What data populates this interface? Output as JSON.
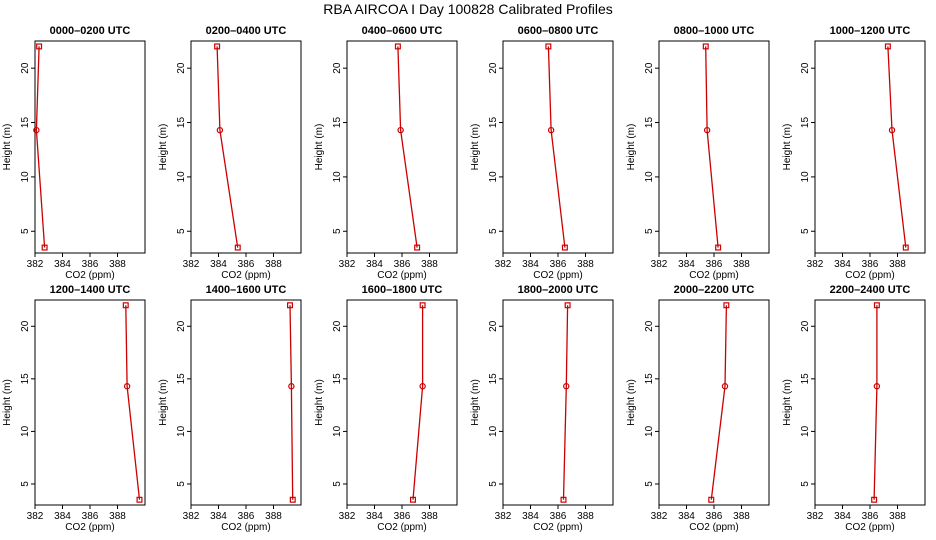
{
  "figure": {
    "title": "RBA AIRCOA I  Day 100828  Calibrated Profiles",
    "series_color": "#cc0000"
  },
  "chart_data": [
    {
      "type": "line",
      "title": "0000–0200 UTC",
      "xlabel": "CO2 (ppm)",
      "ylabel": "Height (m)",
      "xlim": [
        382,
        390
      ],
      "ylim": [
        3,
        22.5
      ],
      "xticks": [
        382,
        384,
        386,
        388
      ],
      "yticks": [
        5,
        10,
        15,
        20
      ],
      "points": [
        {
          "x": 382.3,
          "y": 22
        },
        {
          "x": 382.1,
          "y": 14.3
        },
        {
          "x": 382.7,
          "y": 3.5
        }
      ]
    },
    {
      "type": "line",
      "title": "0200–0400 UTC",
      "xlabel": "CO2 (ppm)",
      "ylabel": "Height (m)",
      "xlim": [
        382,
        390
      ],
      "ylim": [
        3,
        22.5
      ],
      "xticks": [
        382,
        384,
        386,
        388
      ],
      "yticks": [
        5,
        10,
        15,
        20
      ],
      "points": [
        {
          "x": 383.9,
          "y": 22
        },
        {
          "x": 384.1,
          "y": 14.3
        },
        {
          "x": 385.4,
          "y": 3.5
        }
      ]
    },
    {
      "type": "line",
      "title": "0400–0600 UTC",
      "xlabel": "CO2 (ppm)",
      "ylabel": "Height (m)",
      "xlim": [
        382,
        390
      ],
      "ylim": [
        3,
        22.5
      ],
      "xticks": [
        382,
        384,
        386,
        388
      ],
      "yticks": [
        5,
        10,
        15,
        20
      ],
      "points": [
        {
          "x": 385.7,
          "y": 22
        },
        {
          "x": 385.9,
          "y": 14.3
        },
        {
          "x": 387.1,
          "y": 3.5
        }
      ]
    },
    {
      "type": "line",
      "title": "0600–0800 UTC",
      "xlabel": "CO2 (ppm)",
      "ylabel": "Height (m)",
      "xlim": [
        382,
        390
      ],
      "ylim": [
        3,
        22.5
      ],
      "xticks": [
        382,
        384,
        386,
        388
      ],
      "yticks": [
        5,
        10,
        15,
        20
      ],
      "points": [
        {
          "x": 385.3,
          "y": 22
        },
        {
          "x": 385.5,
          "y": 14.3
        },
        {
          "x": 386.5,
          "y": 3.5
        }
      ]
    },
    {
      "type": "line",
      "title": "0800–1000 UTC",
      "xlabel": "CO2 (ppm)",
      "ylabel": "Height (m)",
      "xlim": [
        382,
        390
      ],
      "ylim": [
        3,
        22.5
      ],
      "xticks": [
        382,
        384,
        386,
        388
      ],
      "yticks": [
        5,
        10,
        15,
        20
      ],
      "points": [
        {
          "x": 385.4,
          "y": 22
        },
        {
          "x": 385.5,
          "y": 14.3
        },
        {
          "x": 386.3,
          "y": 3.5
        }
      ]
    },
    {
      "type": "line",
      "title": "1000–1200 UTC",
      "xlabel": "CO2 (ppm)",
      "ylabel": "Height (m)",
      "xlim": [
        382,
        390
      ],
      "ylim": [
        3,
        22.5
      ],
      "xticks": [
        382,
        384,
        386,
        388
      ],
      "yticks": [
        5,
        10,
        15,
        20
      ],
      "points": [
        {
          "x": 387.3,
          "y": 22
        },
        {
          "x": 387.6,
          "y": 14.3
        },
        {
          "x": 388.6,
          "y": 3.5
        }
      ]
    },
    {
      "type": "line",
      "title": "1200–1400 UTC",
      "xlabel": "CO2 (ppm)",
      "ylabel": "Height (m)",
      "xlim": [
        382,
        390
      ],
      "ylim": [
        3,
        22.5
      ],
      "xticks": [
        382,
        384,
        386,
        388
      ],
      "yticks": [
        5,
        10,
        15,
        20
      ],
      "points": [
        {
          "x": 388.6,
          "y": 22
        },
        {
          "x": 388.7,
          "y": 14.3
        },
        {
          "x": 389.6,
          "y": 3.5
        }
      ]
    },
    {
      "type": "line",
      "title": "1400–1600 UTC",
      "xlabel": "CO2 (ppm)",
      "ylabel": "Height (m)",
      "xlim": [
        382,
        390
      ],
      "ylim": [
        3,
        22.5
      ],
      "xticks": [
        382,
        384,
        386,
        388
      ],
      "yticks": [
        5,
        10,
        15,
        20
      ],
      "points": [
        {
          "x": 389.2,
          "y": 22
        },
        {
          "x": 389.3,
          "y": 14.3
        },
        {
          "x": 389.4,
          "y": 3.5
        }
      ]
    },
    {
      "type": "line",
      "title": "1600–1800 UTC",
      "xlabel": "CO2 (ppm)",
      "ylabel": "Height (m)",
      "xlim": [
        382,
        390
      ],
      "ylim": [
        3,
        22.5
      ],
      "xticks": [
        382,
        384,
        386,
        388
      ],
      "yticks": [
        5,
        10,
        15,
        20
      ],
      "points": [
        {
          "x": 387.5,
          "y": 22
        },
        {
          "x": 387.5,
          "y": 14.3
        },
        {
          "x": 386.8,
          "y": 3.5
        }
      ]
    },
    {
      "type": "line",
      "title": "1800–2000 UTC",
      "xlabel": "CO2 (ppm)",
      "ylabel": "Height (m)",
      "xlim": [
        382,
        390
      ],
      "ylim": [
        3,
        22.5
      ],
      "xticks": [
        382,
        384,
        386,
        388
      ],
      "yticks": [
        5,
        10,
        15,
        20
      ],
      "points": [
        {
          "x": 386.7,
          "y": 22
        },
        {
          "x": 386.6,
          "y": 14.3
        },
        {
          "x": 386.4,
          "y": 3.5
        }
      ]
    },
    {
      "type": "line",
      "title": "2000–2200 UTC",
      "xlabel": "CO2 (ppm)",
      "ylabel": "Height (m)",
      "xlim": [
        382,
        390
      ],
      "ylim": [
        3,
        22.5
      ],
      "xticks": [
        382,
        384,
        386,
        388
      ],
      "yticks": [
        5,
        10,
        15,
        20
      ],
      "points": [
        {
          "x": 386.9,
          "y": 22
        },
        {
          "x": 386.8,
          "y": 14.3
        },
        {
          "x": 385.8,
          "y": 3.5
        }
      ]
    },
    {
      "type": "line",
      "title": "2200–2400 UTC",
      "xlabel": "CO2 (ppm)",
      "ylabel": "Height (m)",
      "xlim": [
        382,
        390
      ],
      "ylim": [
        3,
        22.5
      ],
      "xticks": [
        382,
        384,
        386,
        388
      ],
      "yticks": [
        5,
        10,
        15,
        20
      ],
      "points": [
        {
          "x": 386.5,
          "y": 22
        },
        {
          "x": 386.5,
          "y": 14.3
        },
        {
          "x": 386.3,
          "y": 3.5
        }
      ]
    }
  ]
}
